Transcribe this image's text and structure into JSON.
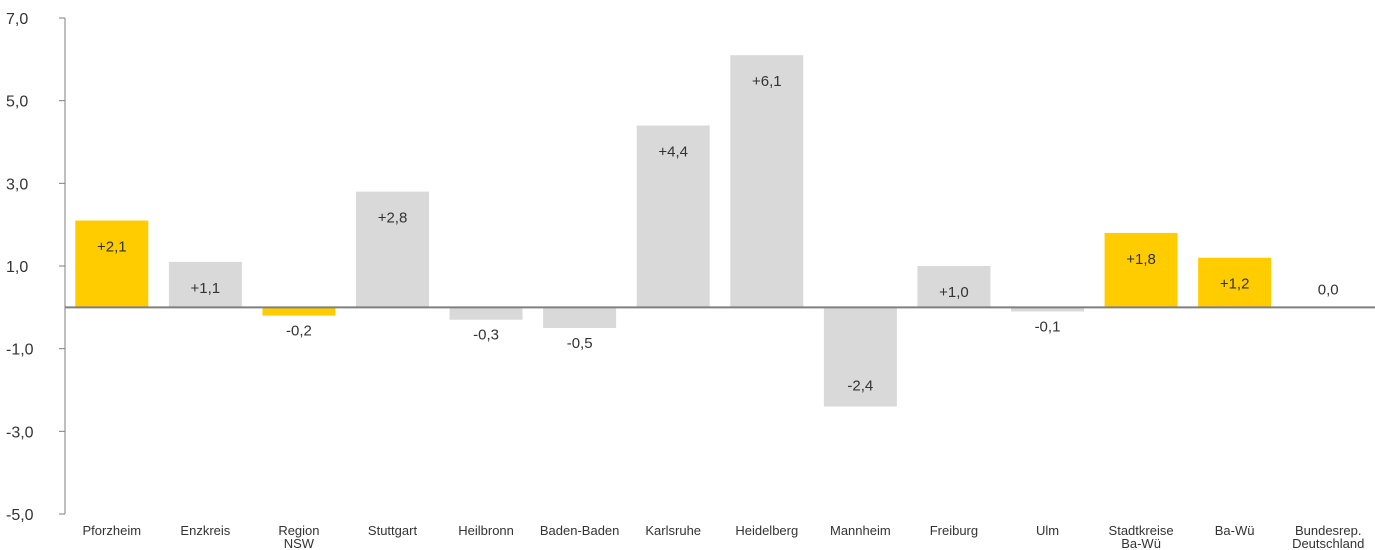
{
  "chart_data": {
    "type": "bar",
    "categories": [
      [
        "Pforzheim"
      ],
      [
        "Enzkreis"
      ],
      [
        "Region",
        "NSW"
      ],
      [
        "Stuttgart"
      ],
      [
        "Heilbronn"
      ],
      [
        "Baden-Baden"
      ],
      [
        "Karlsruhe"
      ],
      [
        "Heidelberg"
      ],
      [
        "Mannheim"
      ],
      [
        "Freiburg"
      ],
      [
        "Ulm"
      ],
      [
        "Stadtkreise",
        "Ba-Wü"
      ],
      [
        "Ba-Wü"
      ],
      [
        "Bundesrep.",
        "Deutschland"
      ]
    ],
    "values": [
      2.1,
      1.1,
      -0.2,
      2.8,
      -0.3,
      -0.5,
      4.4,
      6.1,
      -2.4,
      1.0,
      -0.1,
      1.8,
      1.2,
      0.0
    ],
    "data_labels": [
      "+2,1",
      "+1,1",
      "-0,2",
      "+2,8",
      "-0,3",
      "-0,5",
      "+4,4",
      "+6,1",
      "-2,4",
      "+1,0",
      "-0,1",
      "+1,8",
      "+1,2",
      "0,0"
    ],
    "highlight": [
      true,
      false,
      true,
      false,
      false,
      false,
      false,
      false,
      false,
      false,
      false,
      true,
      true,
      false
    ],
    "ylim": [
      -5.0,
      7.0
    ],
    "yticks": [
      7.0,
      5.0,
      3.0,
      1.0,
      -1.0,
      -3.0,
      -5.0
    ],
    "ytick_labels": [
      "7,0",
      "5,0",
      "3,0",
      "1,0",
      "-1,0",
      "-3,0",
      "-5,0"
    ],
    "title": "",
    "xlabel": "",
    "ylabel": "",
    "grid": false,
    "colors": {
      "highlight": "#FFCC00",
      "default": "#D9D9D9",
      "axis": "#7F7F7F",
      "zero_line": "#7F7F7F",
      "text": "#333333"
    }
  }
}
